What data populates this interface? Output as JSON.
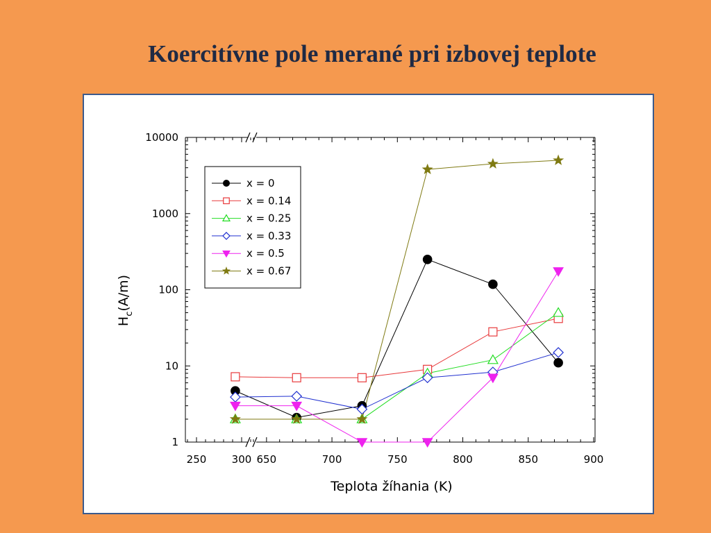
{
  "slide": {
    "title": "Koercitívne pole merané pri izbovej teplote"
  },
  "chart_data": {
    "type": "line",
    "xlabel": "Teplota žíhania (K)",
    "ylabel_main": "H",
    "ylabel_sub": "c",
    "ylabel_unit": "(A/m)",
    "yscale": "log",
    "ylim": [
      1,
      10000
    ],
    "y_tick_labels": [
      "1",
      "10",
      "100",
      "1000",
      "10000"
    ],
    "x_axis_broken": true,
    "x_segment_low": {
      "range": [
        240,
        310
      ],
      "tick_labels": [
        "250",
        "300"
      ]
    },
    "x_segment_high": {
      "range": [
        640,
        900
      ],
      "tick_labels": [
        "650",
        "700",
        "750",
        "800",
        "850",
        "900"
      ]
    },
    "x_break_between": [
      310,
      640
    ],
    "legend_position": "top-left",
    "grid": false,
    "series": [
      {
        "name": "x = 0",
        "color": "#000000",
        "marker": "filled-circle",
        "points": [
          [
            293,
            4.7
          ],
          [
            673,
            2.1
          ],
          [
            723,
            3.0
          ],
          [
            773,
            250
          ],
          [
            823,
            118
          ],
          [
            873,
            11
          ]
        ]
      },
      {
        "name": "x = 0.14",
        "color": "#E8393B",
        "marker": "open-square",
        "points": [
          [
            293,
            7.2
          ],
          [
            673,
            7.0
          ],
          [
            723,
            7.0
          ],
          [
            773,
            9.0
          ],
          [
            823,
            28
          ],
          [
            873,
            42
          ]
        ]
      },
      {
        "name": "x = 0.25",
        "color": "#22DD22",
        "marker": "open-triangle-up",
        "points": [
          [
            293,
            2.0
          ],
          [
            673,
            2.0
          ],
          [
            723,
            2.0
          ],
          [
            773,
            8.0
          ],
          [
            823,
            12
          ],
          [
            873,
            50
          ]
        ]
      },
      {
        "name": "x = 0.33",
        "color": "#2030D0",
        "marker": "open-diamond",
        "points": [
          [
            293,
            3.9
          ],
          [
            673,
            4.0
          ],
          [
            723,
            2.7
          ],
          [
            773,
            7.0
          ],
          [
            823,
            8.3
          ],
          [
            873,
            15
          ]
        ]
      },
      {
        "name": "x = 0.5",
        "color": "#EE22EE",
        "marker": "filled-triangle-down",
        "points": [
          [
            293,
            3.0
          ],
          [
            673,
            3.0
          ],
          [
            723,
            1.0
          ],
          [
            773,
            1.0
          ],
          [
            823,
            7.0
          ],
          [
            873,
            175
          ]
        ]
      },
      {
        "name": "x = 0.67",
        "color": "#7F7A12",
        "marker": "filled-star",
        "points": [
          [
            293,
            2.0
          ],
          [
            673,
            2.0
          ],
          [
            723,
            2.0
          ],
          [
            773,
            3800
          ],
          [
            823,
            4500
          ],
          [
            873,
            5000
          ]
        ]
      }
    ]
  }
}
